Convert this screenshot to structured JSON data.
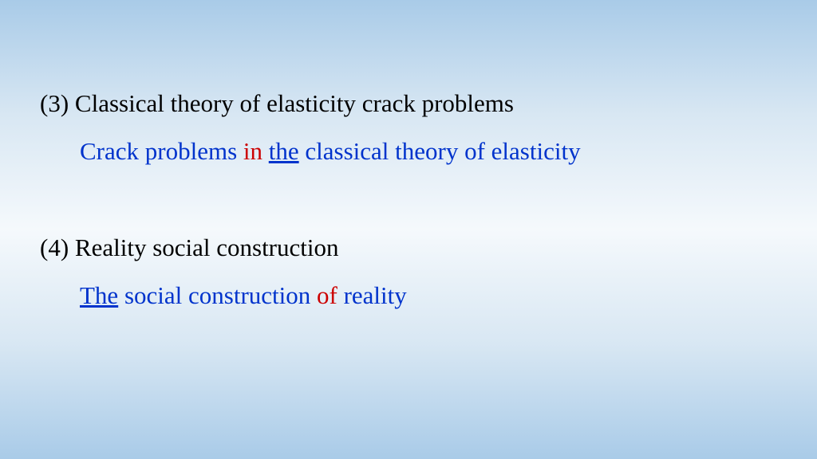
{
  "background": {
    "gradient_stops": [
      "#a9cbe8",
      "#d8e7f3",
      "#f5f9fc",
      "#d8e7f3",
      "#a9cbe8"
    ]
  },
  "typography": {
    "font_family": "Times New Roman",
    "font_size_pt": 23,
    "line_height": 1.3
  },
  "colors": {
    "black": "#000000",
    "blue": "#0033cc",
    "red": "#cc0000"
  },
  "items": [
    {
      "marker": "(3)",
      "heading_text": "Classical theory of elasticity crack problems",
      "sub": {
        "p1": "Crack problems",
        "p2": "in",
        "p3": "the",
        "p4": "classical theory of elasticity"
      }
    },
    {
      "marker": "(4)",
      "heading_text": "Reality social construction",
      "sub": {
        "p1": "The",
        "p2": "social construction",
        "p3": "of",
        "p4": "reality"
      }
    }
  ]
}
